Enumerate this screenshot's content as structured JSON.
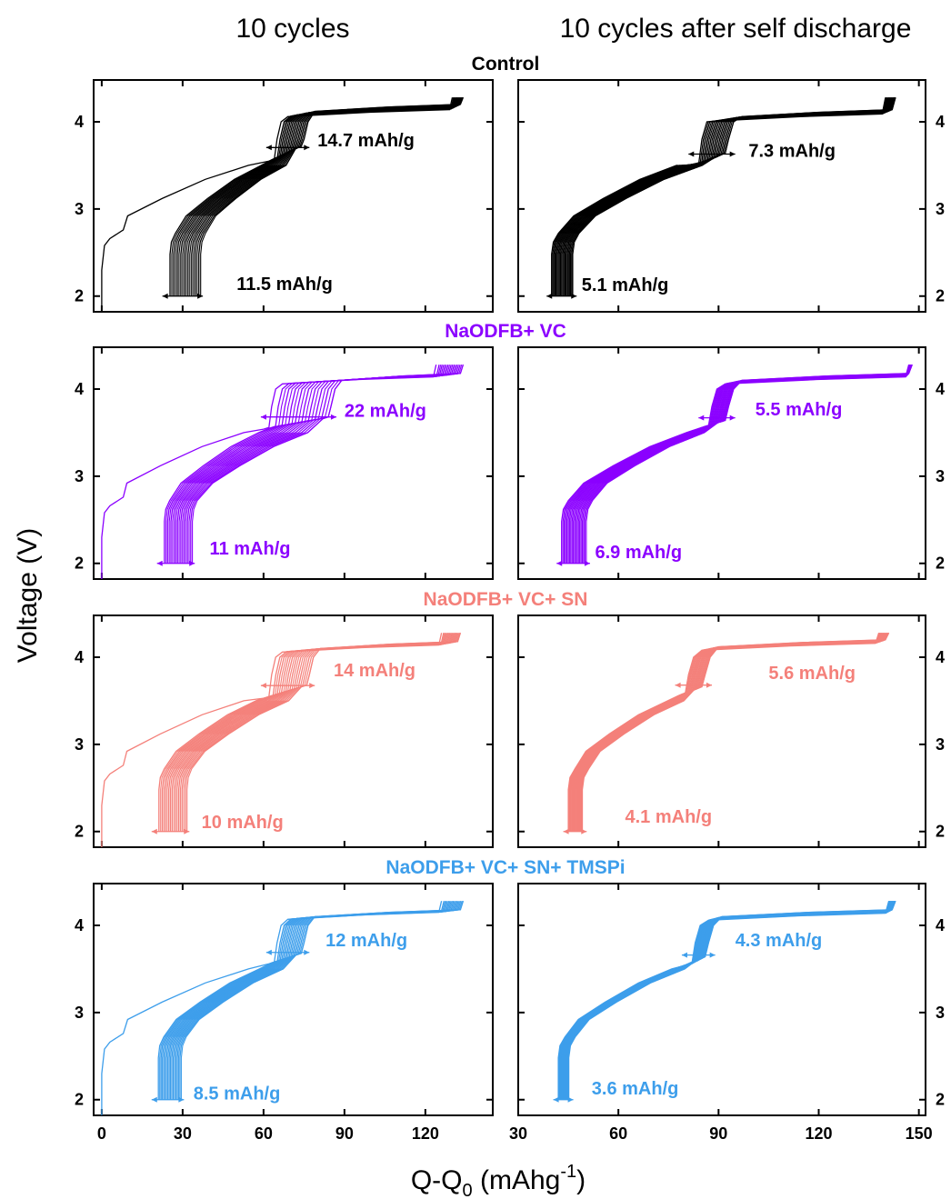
{
  "figure": {
    "col_titles": [
      "10 cycles",
      "10 cycles after self discharge"
    ],
    "ylabel": "Voltage (V)",
    "xlabel": "Q-Q",
    "xlabel_sub": "0",
    "xlabel_unit_open": " (mAhg",
    "xlabel_sup": "-1",
    "xlabel_unit_close": ")"
  },
  "rows": [
    {
      "title": "Control",
      "color": "#000000"
    },
    {
      "title": "NaODFB+ VC",
      "color": "#8B00FF"
    },
    {
      "title": "NaODFB+ VC+ SN",
      "color": "#F4807A"
    },
    {
      "title": "NaODFB+ VC+ SN+ TMSPi",
      "color": "#3D9EEB"
    }
  ],
  "chart_data": [
    {
      "type": "line",
      "row": "Control",
      "panel": "10 cycles",
      "xlim": [
        -3,
        145
      ],
      "ylim": [
        1.82,
        4.48
      ],
      "xticks": [
        0,
        30,
        60,
        90,
        120
      ],
      "yticks": [
        2,
        3,
        4
      ],
      "series_count": 10,
      "params": {
        "first_x0": 0,
        "lo": 24,
        "hi": 36,
        "top0": 130,
        "top1": 134,
        "step0": 64,
        "step1": 74,
        "v1_0": 3.57,
        "v1_1": 3.72,
        "v2_0": 4.08,
        "v2_1": 4.14
      },
      "annotations": [
        {
          "text": "14.7 mAh/g",
          "value": 14.7,
          "x": 80,
          "y": 3.72
        },
        {
          "text": "11.5 mAh/g",
          "value": 11.5,
          "x": 50,
          "y": 2.07
        }
      ]
    },
    {
      "type": "line",
      "row": "Control",
      "panel": "10 cycles after self discharge",
      "xlim": [
        30,
        152
      ],
      "ylim": [
        1.82,
        4.48
      ],
      "xticks": [
        30,
        60,
        90,
        120,
        150
      ],
      "yticks": [
        2,
        3,
        4
      ],
      "series_count": 10,
      "params": {
        "first_x0": 40,
        "lo": 40,
        "hi": 46,
        "top0": 140,
        "top1": 143,
        "step0": 84,
        "step1": 92,
        "v1_0": 3.5,
        "v1_1": 3.64,
        "v2_0": 4.03,
        "v2_1": 4.08
      },
      "annotations": [
        {
          "text": "7.3 mAh/g",
          "value": 7.3,
          "x": 99,
          "y": 3.6
        },
        {
          "text": "5.1 mAh/g",
          "value": 5.1,
          "x": 49,
          "y": 2.06
        }
      ]
    },
    {
      "type": "line",
      "row": "NaODFB+ VC",
      "panel": "10 cycles",
      "xlim": [
        -3,
        145
      ],
      "ylim": [
        1.82,
        4.48
      ],
      "xticks": [
        0,
        30,
        60,
        90,
        120
      ],
      "yticks": [
        2,
        3,
        4
      ],
      "series_count": 10,
      "params": {
        "first_x0": 0,
        "lo": 22,
        "hi": 33,
        "top0": 124,
        "top1": 134,
        "step0": 62,
        "step1": 84,
        "v1_0": 3.56,
        "v1_1": 3.68,
        "v2_0": 4.08,
        "v2_1": 4.12
      },
      "annotations": [
        {
          "text": "22 mAh/g",
          "value": 22,
          "x": 90,
          "y": 3.68
        },
        {
          "text": "11 mAh/g",
          "value": 11,
          "x": 40,
          "y": 2.1
        }
      ]
    },
    {
      "type": "line",
      "row": "NaODFB+ VC",
      "panel": "10 cycles after self discharge",
      "xlim": [
        30,
        152
      ],
      "ylim": [
        1.82,
        4.48
      ],
      "xticks": [
        30,
        60,
        90,
        120,
        150
      ],
      "yticks": [
        2,
        3,
        4
      ],
      "series_count": 10,
      "params": {
        "first_x0": 43,
        "lo": 43,
        "hi": 50,
        "top0": 147,
        "top1": 148,
        "step0": 87,
        "step1": 92,
        "v1_0": 3.58,
        "v1_1": 3.64,
        "v2_0": 4.08,
        "v2_1": 4.12
      },
      "annotations": [
        {
          "text": "5.5 mAh/g",
          "value": 5.5,
          "x": 101,
          "y": 3.7
        },
        {
          "text": "6.9 mAh/g",
          "value": 6.9,
          "x": 53,
          "y": 2.06
        }
      ]
    },
    {
      "type": "line",
      "row": "NaODFB+ VC+ SN",
      "panel": "10 cycles",
      "xlim": [
        -3,
        145
      ],
      "ylim": [
        1.82,
        4.48
      ],
      "xticks": [
        0,
        30,
        60,
        90,
        120
      ],
      "yticks": [
        2,
        3,
        4
      ],
      "series_count": 10,
      "params": {
        "first_x0": 0,
        "lo": 20,
        "hi": 31,
        "top0": 126,
        "top1": 133,
        "step0": 62,
        "step1": 76,
        "v1_0": 3.55,
        "v1_1": 3.68,
        "v2_0": 4.08,
        "v2_1": 4.12
      },
      "annotations": [
        {
          "text": "14 mAh/g",
          "value": 14,
          "x": 86,
          "y": 3.78
        },
        {
          "text": "10 mAh/g",
          "value": 10,
          "x": 37,
          "y": 2.04
        }
      ]
    },
    {
      "type": "line",
      "row": "NaODFB+ VC+ SN",
      "panel": "10 cycles after self discharge",
      "xlim": [
        30,
        152
      ],
      "ylim": [
        1.82,
        4.48
      ],
      "xticks": [
        30,
        60,
        90,
        120,
        150
      ],
      "yticks": [
        2,
        3,
        4
      ],
      "series_count": 10,
      "params": {
        "first_x0": 45,
        "lo": 45,
        "hi": 49,
        "top0": 138,
        "top1": 141,
        "step0": 80,
        "step1": 85,
        "v1_0": 3.58,
        "v1_1": 3.66,
        "v2_0": 4.1,
        "v2_1": 4.14
      },
      "annotations": [
        {
          "text": "5.6 mAh/g",
          "value": 5.6,
          "x": 105,
          "y": 3.75
        },
        {
          "text": "4.1 mAh/g",
          "value": 4.1,
          "x": 62,
          "y": 2.1
        }
      ]
    },
    {
      "type": "line",
      "row": "NaODFB+ VC+ SN+ TMSPi",
      "panel": "10 cycles",
      "xlim": [
        -3,
        145
      ],
      "ylim": [
        1.82,
        4.48
      ],
      "xticks": [
        0,
        30,
        60,
        90,
        120
      ],
      "yticks": [
        2,
        3,
        4
      ],
      "series_count": 10,
      "params": {
        "first_x0": 0,
        "lo": 20,
        "hi": 29,
        "top0": 126,
        "top1": 134,
        "step0": 64,
        "step1": 74,
        "v1_0": 3.58,
        "v1_1": 3.68,
        "v2_0": 4.09,
        "v2_1": 4.12
      },
      "annotations": [
        {
          "text": "12 mAh/g",
          "value": 12,
          "x": 83,
          "y": 3.76
        },
        {
          "text": "8.5 mAh/g",
          "value": 8.5,
          "x": 34,
          "y": 2.0
        }
      ]
    },
    {
      "type": "line",
      "row": "NaODFB+ VC+ SN+ TMSPi",
      "panel": "10 cycles after self discharge",
      "xlim": [
        30,
        152
      ],
      "ylim": [
        1.82,
        4.48
      ],
      "xticks": [
        30,
        60,
        90,
        120,
        150
      ],
      "yticks": [
        2,
        3,
        4
      ],
      "series_count": 10,
      "params": {
        "first_x0": 42,
        "lo": 42,
        "hi": 45,
        "top0": 141,
        "top1": 143,
        "step0": 82,
        "step1": 86,
        "v1_0": 3.56,
        "v1_1": 3.64,
        "v2_0": 4.08,
        "v2_1": 4.12
      },
      "annotations": [
        {
          "text": "4.3 mAh/g",
          "value": 4.3,
          "x": 95,
          "y": 3.76
        },
        {
          "text": "3.6 mAh/g",
          "value": 3.6,
          "x": 52,
          "y": 2.06
        }
      ]
    }
  ]
}
